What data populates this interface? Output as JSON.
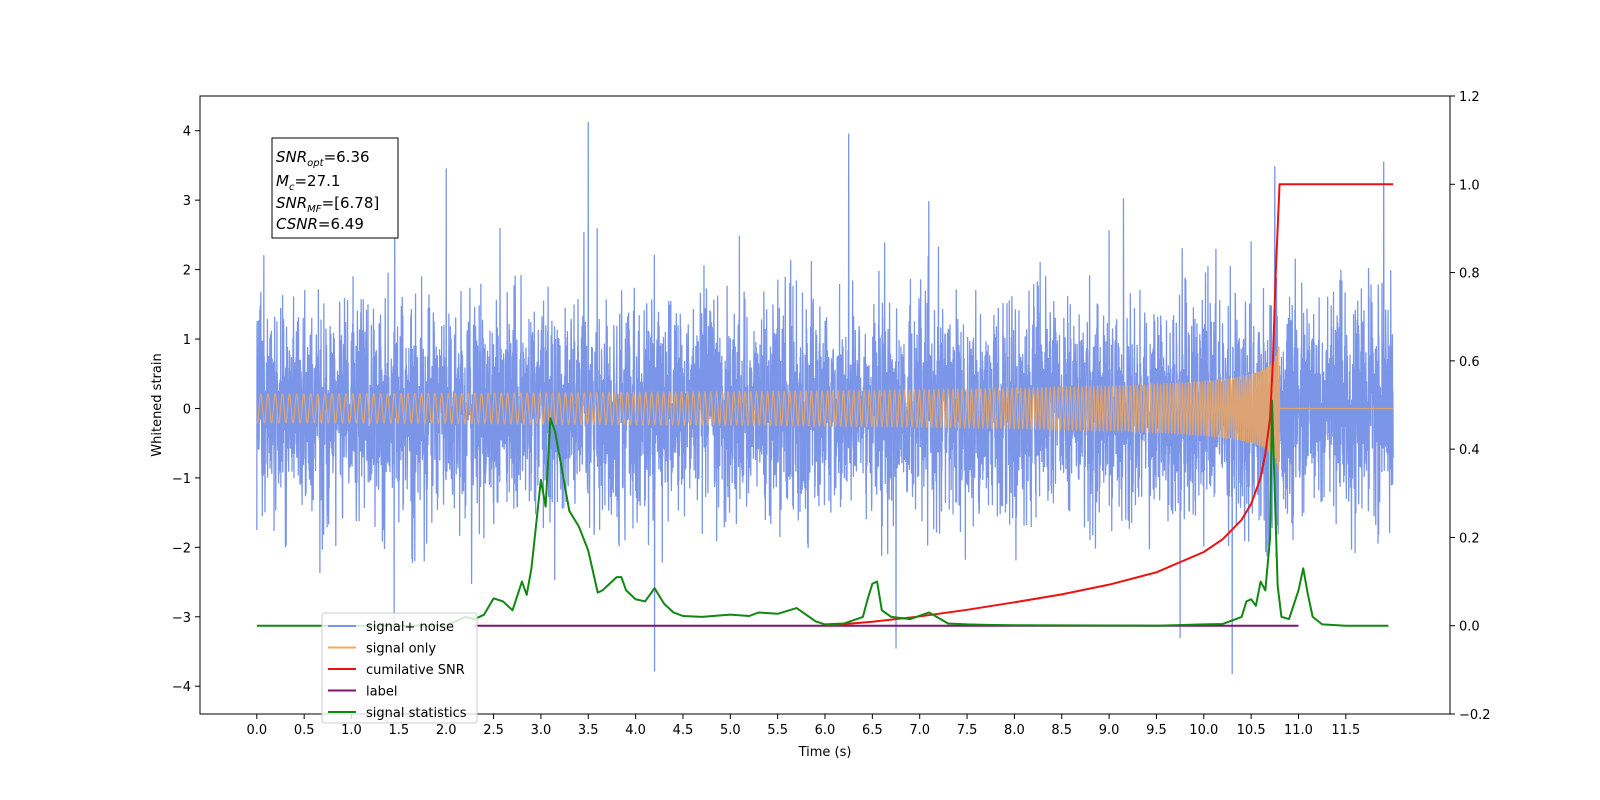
{
  "chart_data": {
    "type": "line",
    "xlabel": "Time (s)",
    "ylabel": "Whitened strain",
    "xlim": [
      -0.6,
      12.6
    ],
    "ylim": [
      -4.4,
      4.5
    ],
    "ylim_right": [
      -0.2,
      1.2
    ],
    "x_ticks": [
      0.0,
      0.5,
      1.0,
      1.5,
      2.0,
      2.5,
      3.0,
      3.5,
      4.0,
      4.5,
      5.0,
      5.5,
      6.0,
      6.5,
      7.0,
      7.5,
      8.0,
      8.5,
      9.0,
      9.5,
      10.0,
      10.5,
      11.0,
      11.5
    ],
    "x_tick_labels": [
      "0.0",
      "0.5",
      "1.0",
      "1.5",
      "2.0",
      "2.5",
      "3.0",
      "3.5",
      "4.0",
      "4.5",
      "5.0",
      "5.5",
      "6.0",
      "6.5",
      "7.0",
      "7.5",
      "8.0",
      "8.5",
      "9.0",
      "9.5",
      "10.0",
      "10.5",
      "11.0",
      "11.5"
    ],
    "y_ticks": [
      -4,
      -3,
      -2,
      -1,
      0,
      1,
      2,
      3,
      4
    ],
    "y_tick_labels": [
      "−4",
      "−3",
      "−2",
      "−1",
      "0",
      "1",
      "2",
      "3",
      "4"
    ],
    "y_ticks_right": [
      -0.2,
      0.0,
      0.2,
      0.4,
      0.6,
      0.8,
      1.0,
      1.2
    ],
    "y_tick_labels_right": [
      "−0.2",
      "0.0",
      "0.2",
      "0.4",
      "0.6",
      "0.8",
      "1.0",
      "1.2"
    ],
    "grid": false,
    "legend_placement": "lower-left",
    "annotation": {
      "lines": [
        {
          "base": "SNR",
          "sub": "opt",
          "value": "=6.36"
        },
        {
          "base": "M",
          "sub": "c",
          "value": "=27.1"
        },
        {
          "base": "SNR",
          "sub": "MF",
          "value": "=[6.78]"
        },
        {
          "base": "CSNR",
          "sub": "",
          "value": "=6.49"
        }
      ]
    },
    "series": [
      {
        "name": "signal+ noise",
        "axis": "left",
        "color": "#7b96e8",
        "description_level": "noise",
        "x_range": [
          0.0,
          12.0
        ],
        "std": 1.15,
        "peak_points": [
          {
            "x": 0.0,
            "y": 1.75
          },
          {
            "x": 0.0,
            "y": -1.75
          },
          {
            "x": 1.45,
            "y": -3.1
          },
          {
            "x": 2.0,
            "y": 3.45
          },
          {
            "x": 3.5,
            "y": 4.12
          },
          {
            "x": 4.2,
            "y": -3.78
          },
          {
            "x": 6.25,
            "y": 3.95
          },
          {
            "x": 6.75,
            "y": -3.45
          },
          {
            "x": 9.75,
            "y": -3.3
          },
          {
            "x": 10.3,
            "y": -3.82
          },
          {
            "x": 10.75,
            "y": 3.48
          },
          {
            "x": 11.9,
            "y": 3.55
          }
        ]
      },
      {
        "name": "signal only",
        "axis": "left",
        "color": "#f5a857",
        "description_level": "chirp",
        "x_range": [
          0.0,
          12.0
        ],
        "merger_time": 10.8,
        "peak_amplitude": 1.0
      },
      {
        "name": "cumilative SNR",
        "axis": "right",
        "color": "#ee1111",
        "x": [
          6.0,
          6.5,
          7.0,
          7.5,
          8.0,
          8.5,
          9.0,
          9.5,
          10.0,
          10.2,
          10.4,
          10.5,
          10.6,
          10.65,
          10.7,
          10.73,
          10.76,
          10.8,
          11.0,
          11.5,
          12.0
        ],
        "y": [
          0.0,
          0.009,
          0.021,
          0.036,
          0.053,
          0.071,
          0.093,
          0.121,
          0.167,
          0.196,
          0.24,
          0.276,
          0.335,
          0.39,
          0.47,
          0.6,
          0.8,
          1.0,
          1.0,
          1.0,
          1.0
        ]
      },
      {
        "name": "label",
        "axis": "right",
        "color": "#7a1573",
        "x": [
          2.3,
          11.0
        ],
        "y": [
          0.0,
          0.0
        ]
      },
      {
        "name": "signal statistics",
        "axis": "right",
        "color": "#118811",
        "x": [
          0.0,
          2.0,
          2.2,
          2.3,
          2.4,
          2.5,
          2.6,
          2.7,
          2.8,
          2.85,
          2.9,
          3.0,
          3.05,
          3.1,
          3.15,
          3.2,
          3.3,
          3.4,
          3.5,
          3.6,
          3.65,
          3.7,
          3.8,
          3.85,
          3.9,
          4.0,
          4.1,
          4.2,
          4.3,
          4.4,
          4.5,
          4.7,
          5.0,
          5.2,
          5.3,
          5.5,
          5.7,
          5.9,
          6.0,
          6.2,
          6.4,
          6.45,
          6.5,
          6.55,
          6.6,
          6.7,
          6.9,
          7.1,
          7.3,
          7.5,
          7.7,
          8.0,
          9.5,
          10.0,
          10.2,
          10.4,
          10.45,
          10.5,
          10.55,
          10.6,
          10.65,
          10.7,
          10.72,
          10.75,
          10.78,
          10.82,
          10.9,
          11.0,
          11.05,
          11.1,
          11.15,
          11.25,
          11.5,
          11.95
        ],
        "y": [
          0.0,
          0.0,
          0.02,
          0.015,
          0.025,
          0.062,
          0.055,
          0.035,
          0.1,
          0.07,
          0.13,
          0.33,
          0.27,
          0.47,
          0.44,
          0.38,
          0.26,
          0.225,
          0.17,
          0.075,
          0.08,
          0.09,
          0.11,
          0.11,
          0.08,
          0.06,
          0.055,
          0.085,
          0.05,
          0.03,
          0.022,
          0.02,
          0.025,
          0.022,
          0.03,
          0.027,
          0.04,
          0.01,
          0.003,
          0.005,
          0.02,
          0.06,
          0.095,
          0.1,
          0.035,
          0.02,
          0.015,
          0.03,
          0.005,
          0.003,
          0.002,
          0.001,
          0.0,
          0.003,
          0.004,
          0.02,
          0.055,
          0.06,
          0.045,
          0.1,
          0.08,
          0.2,
          0.51,
          0.3,
          0.09,
          0.02,
          0.015,
          0.08,
          0.13,
          0.07,
          0.02,
          0.003,
          0.0,
          0.0
        ]
      }
    ]
  }
}
